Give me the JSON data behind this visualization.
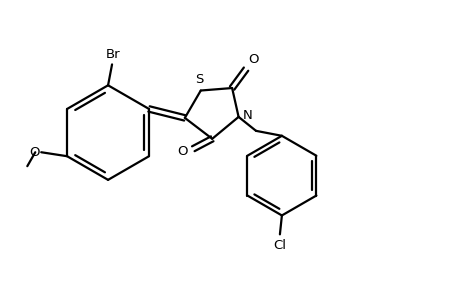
{
  "background_color": "#ffffff",
  "line_color": "#000000",
  "line_width": 1.6,
  "font_size": 9.5,
  "figsize": [
    4.6,
    3.0
  ],
  "dpi": 100,
  "xlim": [
    0,
    9.2
  ],
  "ylim": [
    0,
    6.0
  ]
}
